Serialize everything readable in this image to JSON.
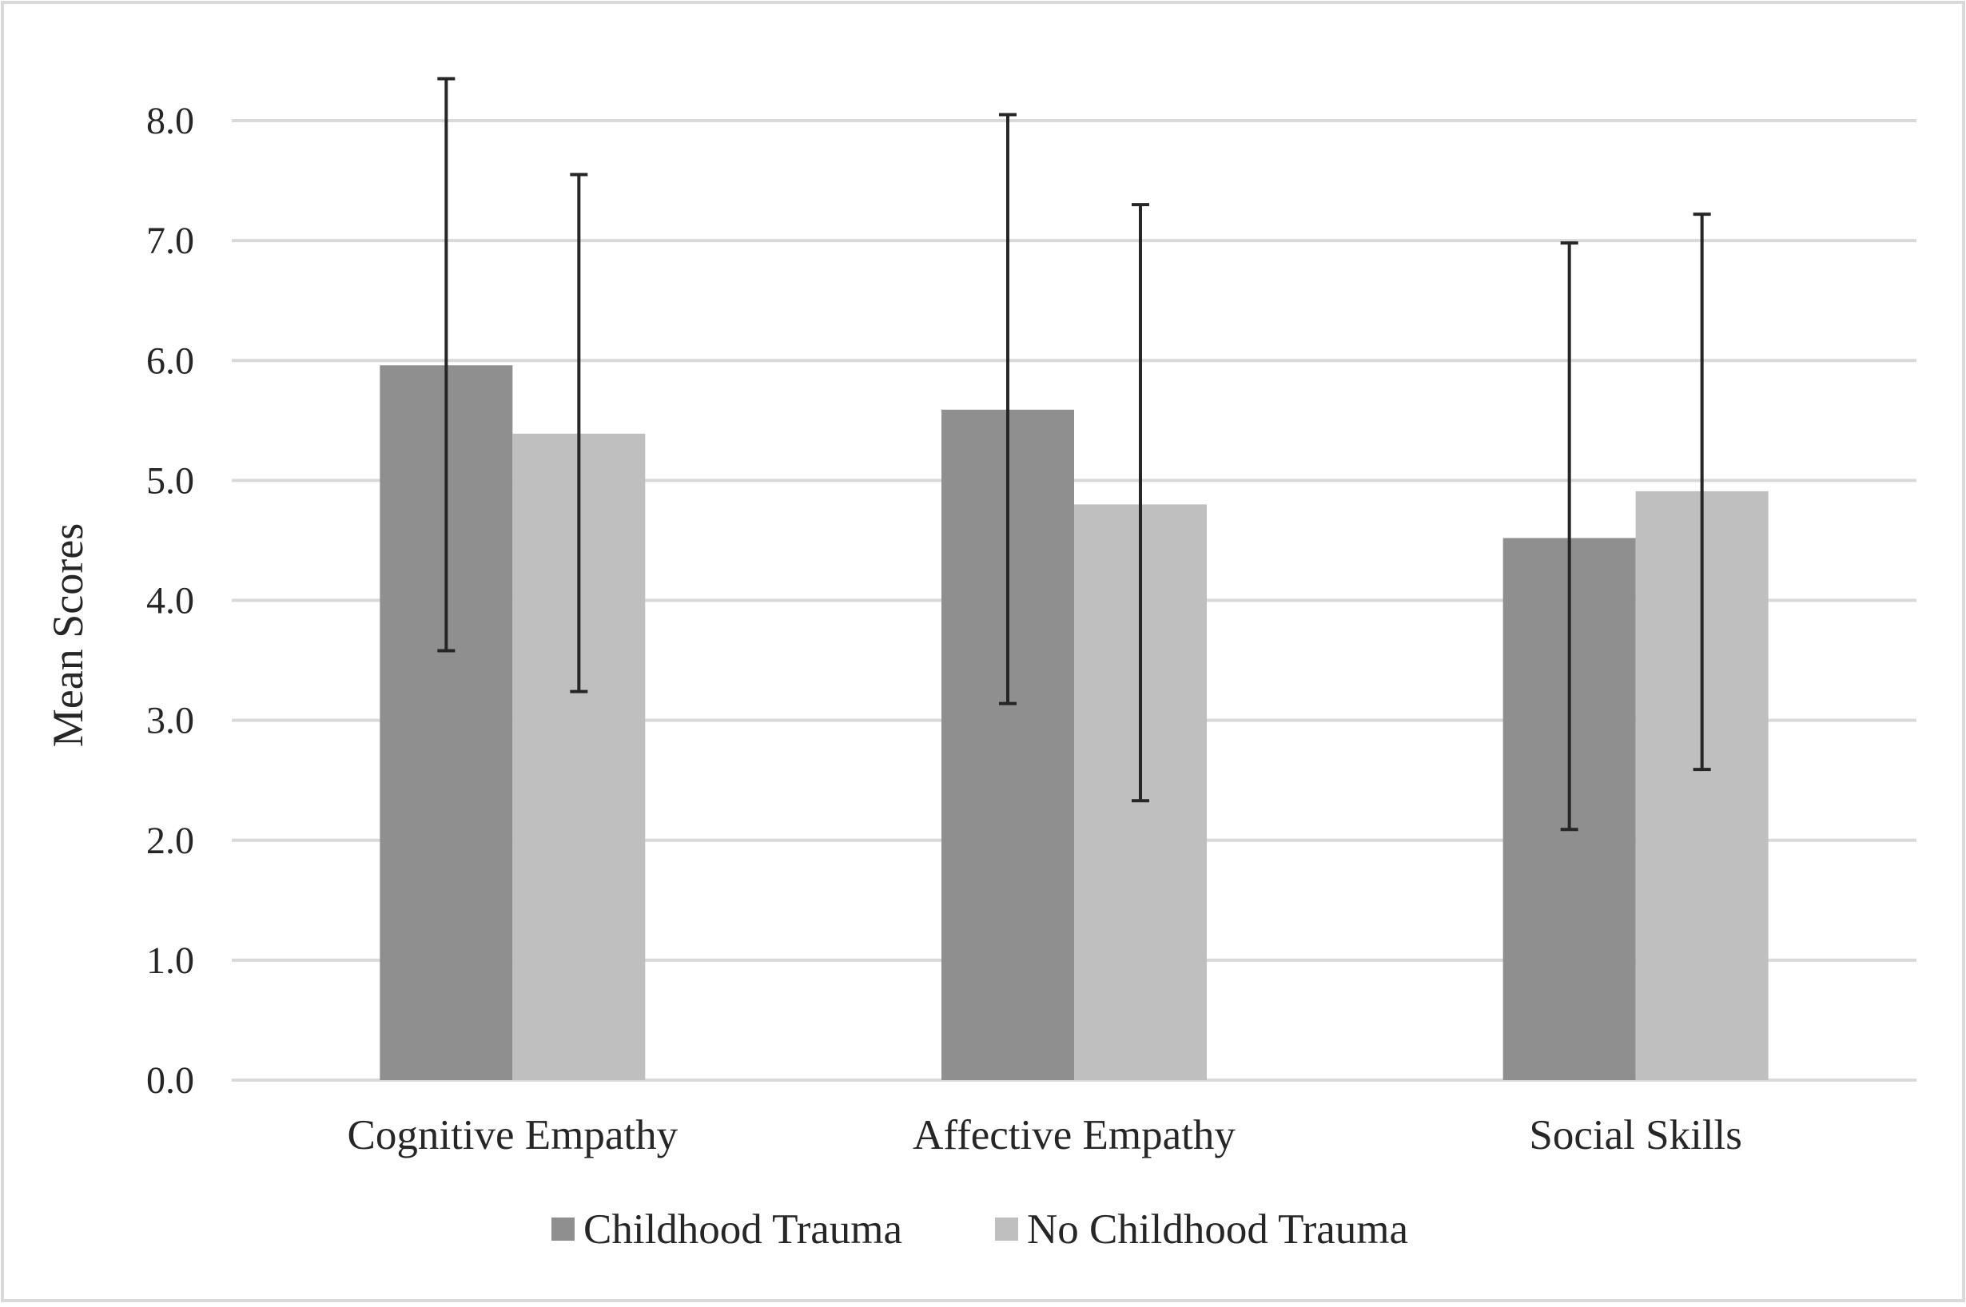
{
  "chart_data": {
    "type": "bar",
    "title": "",
    "xlabel": "",
    "ylabel": "Mean Scores",
    "ylim": [
      0,
      8
    ],
    "y_ticks": [
      "0.0",
      "1.0",
      "2.0",
      "3.0",
      "4.0",
      "5.0",
      "6.0",
      "7.0",
      "8.0"
    ],
    "grid": true,
    "legend_position": "bottom",
    "categories": [
      "Cognitive Empathy",
      "Affective Empathy",
      "Social Skills"
    ],
    "series": [
      {
        "name": "Childhood Trauma",
        "color": "#8f8f8f",
        "values": [
          5.96,
          5.59,
          4.52
        ],
        "error_low": [
          3.58,
          3.14,
          2.09
        ],
        "error_high": [
          8.35,
          8.05,
          6.98
        ]
      },
      {
        "name": "No Childhood Trauma",
        "color": "#bfbfbf",
        "values": [
          5.39,
          4.8,
          4.91
        ],
        "error_low": [
          3.24,
          2.33,
          2.59
        ],
        "error_high": [
          7.55,
          7.3,
          7.22
        ]
      }
    ],
    "colors": {
      "grid": "#d9d9d9",
      "error_bar": "#262626",
      "border": "#d9d9d9"
    }
  }
}
